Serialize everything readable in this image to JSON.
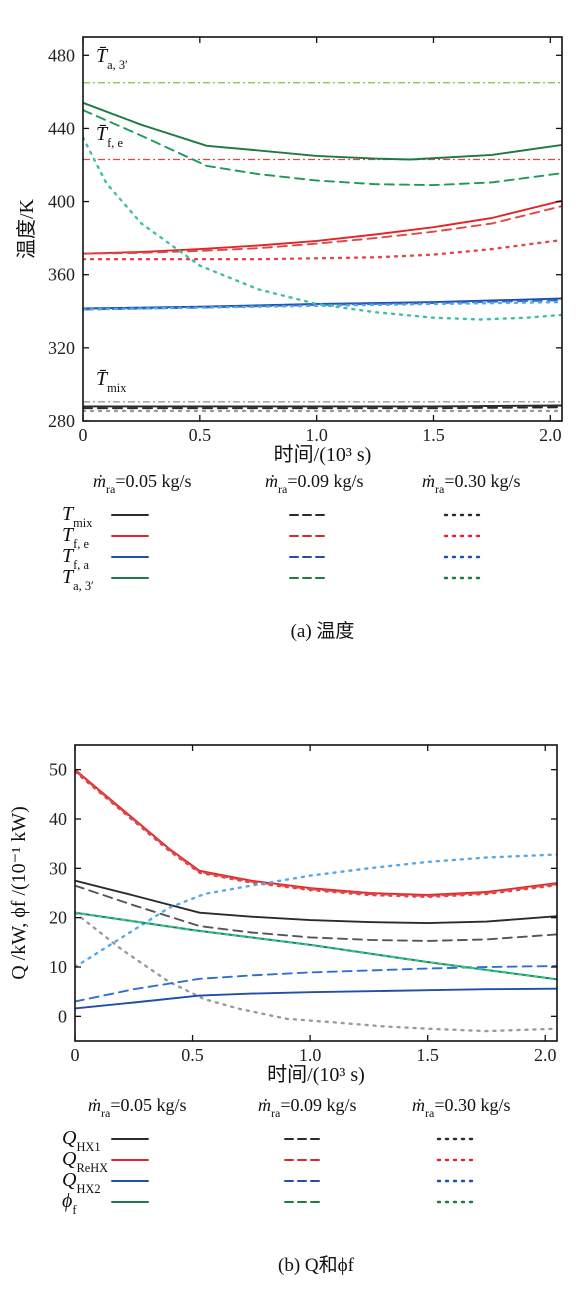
{
  "colors": {
    "black": "#2b2b2b",
    "red": "#e0262a",
    "blue": "#1f4fa8",
    "green": "#1d7a43",
    "light_green": "#7cc242",
    "light_red": "#e04848",
    "blue2": "#2f6fd0",
    "light_blue": "#58a8e8",
    "gray": "#9a9a9a",
    "teal": "#40c0a0"
  },
  "legend": {
    "columns": [
      "=0.05 kg/s",
      "=0.09 kg/s",
      "=0.30 kg/s"
    ],
    "col_prefix": "ṁ",
    "col_sub": "ra"
  },
  "chart_data": [
    {
      "type": "line",
      "panel": "a",
      "caption": "(a) 温度",
      "xlabel": "时间/(10³ s)",
      "ylabel": "温度/K",
      "xlim": [
        0,
        2.05
      ],
      "ylim": [
        280,
        490
      ],
      "xticks": [
        0,
        0.5,
        1.0,
        1.5,
        2.0
      ],
      "xtick_labels": [
        "0",
        "0.5",
        "1.0",
        "1.5",
        "2.0"
      ],
      "yticks": [
        280,
        320,
        360,
        400,
        440,
        480
      ],
      "yticks_labels": [
        "280",
        "320",
        "360",
        "400",
        "440",
        "480"
      ],
      "refs": [
        {
          "name": "T̄a,3′",
          "main": "T̄",
          "sub": "a, 3′",
          "y": 465,
          "color": "#7cc242"
        },
        {
          "name": "T̄f,e",
          "main": "T̄",
          "sub": "f, e",
          "y": 423,
          "color": "#e04848"
        },
        {
          "name": "T̄mix",
          "main": "T̄",
          "sub": "mix",
          "y": 290.5,
          "color": "#9a9a9a"
        }
      ],
      "legend_rows": [
        {
          "main": "T",
          "sub": "mix",
          "color": "#2b2b2b"
        },
        {
          "main": "T",
          "sub": "f, e",
          "color": "#e0262a"
        },
        {
          "main": "T",
          "sub": "f, a",
          "color": "#1f4fa8"
        },
        {
          "main": "T",
          "sub": "a, 3′",
          "color": "#1d7a43"
        }
      ],
      "series": [
        {
          "name": "Tmix ṁra=0.05",
          "style": "solid",
          "color": "#2b2b2b",
          "x": [
            0,
            0.5,
            1.0,
            1.5,
            2.05
          ],
          "y": [
            288,
            288,
            288,
            288,
            288.5
          ]
        },
        {
          "name": "Tmix ṁra=0.09",
          "style": "dashed",
          "color": "#2b2b2b",
          "x": [
            0,
            0.5,
            1.0,
            1.5,
            2.05
          ],
          "y": [
            287,
            287,
            287,
            287,
            287.5
          ]
        },
        {
          "name": "Tmix ṁra=0.30",
          "style": "dotted",
          "color": "#9a9a9a",
          "x": [
            0,
            0.5,
            1.0,
            1.5,
            2.05
          ],
          "y": [
            285.5,
            285.5,
            285.5,
            285.5,
            285.5
          ]
        },
        {
          "name": "Tf,e ṁra=0.05",
          "style": "solid",
          "color": "#e0262a",
          "x": [
            0,
            0.25,
            0.5,
            0.75,
            1.0,
            1.25,
            1.5,
            1.75,
            2.05
          ],
          "y": [
            371.5,
            372.5,
            374,
            376,
            378.5,
            382,
            386,
            391,
            400.5
          ]
        },
        {
          "name": "Tf,e ṁra=0.09",
          "style": "dashed",
          "color": "#e04848",
          "x": [
            0,
            0.25,
            0.5,
            0.75,
            1.0,
            1.25,
            1.5,
            1.75,
            2.05
          ],
          "y": [
            371.5,
            372,
            373,
            374.5,
            377,
            380,
            383.5,
            388,
            397.5
          ]
        },
        {
          "name": "Tf,e ṁra=0.30",
          "style": "dotted",
          "color": "#e04848",
          "x": [
            0,
            0.25,
            0.5,
            0.75,
            1.0,
            1.25,
            1.5,
            1.75,
            2.05
          ],
          "y": [
            368.5,
            368.5,
            368.5,
            368.5,
            369,
            369.5,
            371,
            374,
            379
          ]
        },
        {
          "name": "Tf,a ṁra=0.05",
          "style": "solid",
          "color": "#1f4fa8",
          "x": [
            0,
            0.5,
            1.0,
            1.5,
            2.05
          ],
          "y": [
            341.5,
            342.5,
            344,
            345,
            347
          ]
        },
        {
          "name": "Tf,a ṁra=0.09",
          "style": "dashed",
          "color": "#2f6fd0",
          "x": [
            0,
            0.5,
            1.0,
            1.5,
            2.05
          ],
          "y": [
            341,
            342,
            343.5,
            344.5,
            346
          ]
        },
        {
          "name": "Tf,a ṁra=0.30",
          "style": "dotted",
          "color": "#58a8e8",
          "x": [
            0,
            0.5,
            1.0,
            1.5,
            2.05
          ],
          "y": [
            341,
            342,
            343,
            344,
            345
          ]
        },
        {
          "name": "Ta,3′ ṁra=0.05",
          "style": "solid",
          "color": "#1d7a43",
          "x": [
            0,
            0.25,
            0.53,
            0.75,
            1.0,
            1.25,
            1.4,
            1.75,
            2.05
          ],
          "y": [
            454,
            442,
            430.5,
            428,
            425,
            423.5,
            423,
            425.5,
            431
          ]
        },
        {
          "name": "Ta,3′ ṁra=0.09",
          "style": "dashed",
          "color": "#1d9a5a",
          "x": [
            0,
            0.25,
            0.53,
            0.75,
            1.0,
            1.25,
            1.5,
            1.75,
            2.05
          ],
          "y": [
            450,
            436,
            419.5,
            415,
            411.5,
            409.5,
            409,
            410.5,
            415.5
          ]
        },
        {
          "name": "Ta,3′ ṁra=0.30",
          "style": "dotted",
          "color": "#40c0a0",
          "x": [
            0,
            0.1,
            0.25,
            0.5,
            0.75,
            1.0,
            1.25,
            1.5,
            1.7,
            1.9,
            2.05
          ],
          "y": [
            435,
            410,
            388,
            365,
            352,
            344,
            339.5,
            336.5,
            335.5,
            336.5,
            338
          ]
        }
      ]
    },
    {
      "type": "line",
      "panel": "b",
      "caption": "(b) Q和ϕf",
      "xlabel": "时间/(10³ s)",
      "ylabel": "Q /kW, ϕf /(10⁻¹ kW)",
      "xlim": [
        0,
        2.05
      ],
      "ylim": [
        -5,
        55
      ],
      "xticks": [
        0,
        0.5,
        1.0,
        1.5,
        2.0
      ],
      "xtick_labels": [
        "0",
        "0.5",
        "1.0",
        "1.5",
        "2.0"
      ],
      "yticks": [
        0,
        10,
        20,
        30,
        40,
        50
      ],
      "yticks_labels": [
        "0",
        "10",
        "20",
        "30",
        "40",
        "50"
      ],
      "legend_rows": [
        {
          "main": "Q",
          "sub": "HX1",
          "color": "#2b2b2b"
        },
        {
          "main": "Q",
          "sub": "ReHX",
          "color": "#e0262a"
        },
        {
          "main": "Q",
          "sub": "HX2",
          "color": "#1f4fa8"
        },
        {
          "main": "ϕ",
          "sub": "f",
          "color": "#1d7a43"
        }
      ],
      "series": [
        {
          "name": "QHX1 ṁra=0.05",
          "style": "solid",
          "color": "#2b2b2b",
          "x": [
            0,
            0.25,
            0.53,
            0.75,
            1.0,
            1.25,
            1.5,
            1.75,
            2.05
          ],
          "y": [
            27.5,
            24.5,
            21,
            20.2,
            19.5,
            19.1,
            18.9,
            19.2,
            20.3
          ]
        },
        {
          "name": "QHX1 ṁra=0.09",
          "style": "dashed",
          "color": "#555555",
          "x": [
            0,
            0.25,
            0.53,
            0.75,
            1.0,
            1.25,
            1.5,
            1.75,
            2.05
          ],
          "y": [
            26.5,
            22.5,
            18.3,
            17,
            16,
            15.5,
            15.3,
            15.6,
            16.6
          ]
        },
        {
          "name": "QHX1 ṁra=0.30",
          "style": "dotted",
          "color": "#9a9a9a",
          "x": [
            0,
            0.2,
            0.4,
            0.55,
            0.7,
            0.9,
            1.1,
            1.3,
            1.5,
            1.75,
            2.05
          ],
          "y": [
            21,
            13.5,
            7,
            3.5,
            1.5,
            -0.5,
            -1.2,
            -2,
            -2.5,
            -3,
            -2.5
          ]
        },
        {
          "name": "QReHX ṁra=0.05",
          "style": "solid",
          "color": "#e0262a",
          "x": [
            0,
            0.2,
            0.4,
            0.53,
            0.75,
            1.0,
            1.25,
            1.5,
            1.75,
            2.05
          ],
          "y": [
            50,
            42,
            34,
            29.5,
            27.5,
            26,
            25,
            24.6,
            25.2,
            27
          ]
        },
        {
          "name": "QReHX ṁra=0.09",
          "style": "dashed",
          "color": "#e04848",
          "x": [
            0,
            0.2,
            0.4,
            0.53,
            0.75,
            1.0,
            1.25,
            1.5,
            1.75,
            2.05
          ],
          "y": [
            49.8,
            41.8,
            33.8,
            29.3,
            27.3,
            25.8,
            24.8,
            24.4,
            25,
            26.8
          ]
        },
        {
          "name": "QReHX ṁra=0.30",
          "style": "dotted",
          "color": "#e04848",
          "x": [
            0,
            0.2,
            0.4,
            0.53,
            0.75,
            1.0,
            1.25,
            1.5,
            1.75,
            2.05
          ],
          "y": [
            49.6,
            41.6,
            33.6,
            29.1,
            27.1,
            25.6,
            24.6,
            24.2,
            24.8,
            26.6
          ]
        },
        {
          "name": "QHX2 ṁra=0.05",
          "style": "solid",
          "color": "#1f4fa8",
          "x": [
            0,
            0.25,
            0.53,
            0.75,
            1.0,
            1.25,
            1.5,
            1.75,
            2.05
          ],
          "y": [
            1.6,
            2.8,
            4.2,
            4.6,
            4.9,
            5.1,
            5.3,
            5.5,
            5.6
          ]
        },
        {
          "name": "QHX2 ṁra=0.09",
          "style": "dashed",
          "color": "#2f6fd0",
          "x": [
            0,
            0.25,
            0.53,
            0.75,
            1.0,
            1.25,
            1.5,
            1.75,
            2.05
          ],
          "y": [
            3,
            5.5,
            7.6,
            8.3,
            8.9,
            9.3,
            9.7,
            10,
            10.2
          ]
        },
        {
          "name": "QHX2 ṁra=0.30",
          "style": "dotted",
          "color": "#58a8e8",
          "x": [
            0,
            0.2,
            0.4,
            0.55,
            0.75,
            1.0,
            1.25,
            1.5,
            1.75,
            2.05
          ],
          "y": [
            10,
            16,
            22,
            24.8,
            26.5,
            28.5,
            30,
            31.3,
            32.2,
            32.8
          ]
        },
        {
          "name": "ϕf ṁra=0.05",
          "style": "solid",
          "color": "#1d7a43",
          "x": [
            0,
            0.5,
            1.0,
            1.5,
            2.05
          ],
          "y": [
            21,
            17.5,
            14.5,
            11,
            7.5
          ]
        },
        {
          "name": "ϕf ṁra=0.09",
          "style": "dashed",
          "color": "#1d9a5a",
          "x": [
            0,
            0.5,
            1.0,
            1.5,
            2.05
          ],
          "y": [
            21,
            17.5,
            14.5,
            11,
            7.5
          ]
        },
        {
          "name": "ϕf ṁra=0.30",
          "style": "dotted",
          "color": "#40c0a0",
          "x": [
            0,
            0.5,
            1.0,
            1.5,
            2.05
          ],
          "y": [
            21,
            17.5,
            14.5,
            11,
            7.5
          ]
        }
      ]
    }
  ]
}
